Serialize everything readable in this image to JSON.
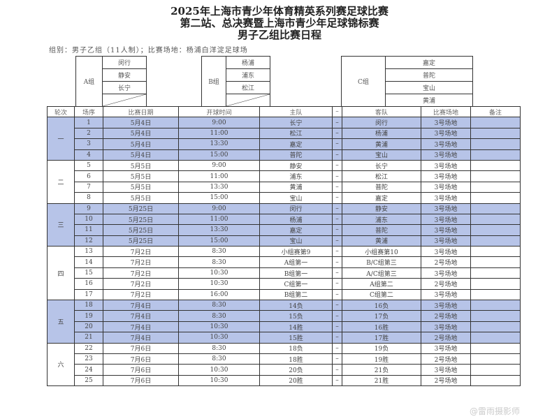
{
  "title": {
    "line1": "2025年上海市青少年体育精英系列赛足球比赛",
    "line2": "第二站、总决赛暨上海市青少年足球锦标赛",
    "line3": "男子乙组比赛日程"
  },
  "info": "组别：男子乙组（11人制）；比赛场地：杨浦白洋淀足球场",
  "groups": [
    {
      "label": "A组",
      "teams": [
        "闵行",
        "静安",
        "长宁",
        ""
      ]
    },
    {
      "label": "B组",
      "teams": [
        "杨浦",
        "浦东",
        "松江",
        ""
      ]
    },
    {
      "label": "C组",
      "teams": [
        "嘉定",
        "普陀",
        "宝山",
        "黄浦"
      ]
    }
  ],
  "headers": [
    "轮次",
    "场序",
    "比赛日期",
    "开球时间",
    "主队",
    "–",
    "客队",
    "比赛场地",
    "备注"
  ],
  "highlight_color": "#b7c4e8",
  "rounds": [
    {
      "name": "一",
      "highlight": true,
      "matches": [
        [
          "1",
          "5月4日",
          "9:00",
          "长宁",
          "闵行",
          "3号场地"
        ],
        [
          "2",
          "5月4日",
          "11:00",
          "松江",
          "杨浦",
          "3号场地"
        ],
        [
          "3",
          "5月4日",
          "13:30",
          "嘉定",
          "黄浦",
          "3号场地"
        ],
        [
          "4",
          "5月4日",
          "15:00",
          "普陀",
          "宝山",
          "3号场地"
        ]
      ]
    },
    {
      "name": "二",
      "highlight": false,
      "matches": [
        [
          "5",
          "5月5日",
          "9:00",
          "静安",
          "长宁",
          "3号场地"
        ],
        [
          "6",
          "5月5日",
          "11:00",
          "浦东",
          "松江",
          "3号场地"
        ],
        [
          "7",
          "5月5日",
          "13:30",
          "黄浦",
          "普陀",
          "3号场地"
        ],
        [
          "8",
          "5月5日",
          "15:00",
          "宝山",
          "嘉定",
          "3号场地"
        ]
      ]
    },
    {
      "name": "三",
      "highlight": true,
      "matches": [
        [
          "9",
          "5月25日",
          "9:00",
          "闵行",
          "静安",
          "3号场地"
        ],
        [
          "10",
          "5月25日",
          "11:00",
          "杨浦",
          "浦东",
          "3号场地"
        ],
        [
          "11",
          "5月25日",
          "13:30",
          "嘉定",
          "普陀",
          "3号场地"
        ],
        [
          "12",
          "5月25日",
          "15:00",
          "宝山",
          "黄浦",
          "3号场地"
        ]
      ]
    },
    {
      "name": "四",
      "highlight": false,
      "matches": [
        [
          "13",
          "7月2日",
          "8:30",
          "小组赛第9",
          "小组赛第10",
          "3号场地"
        ],
        [
          "14",
          "7月2日",
          "8:30",
          "A组第一",
          "B/C组第三",
          "2号场地"
        ],
        [
          "15",
          "7月2日",
          "10:30",
          "B组第一",
          "A/C组第三",
          "3号场地"
        ],
        [
          "16",
          "7月2日",
          "10:30",
          "C组第一",
          "A组第二",
          "2号场地"
        ],
        [
          "17",
          "7月2日",
          "16:00",
          "B组第二",
          "C组第二",
          "3号场地"
        ]
      ]
    },
    {
      "name": "五",
      "highlight": true,
      "matches": [
        [
          "18",
          "7月4日",
          "8:30",
          "14负",
          "16负",
          "3号场地"
        ],
        [
          "19",
          "7月4日",
          "8:30",
          "15负",
          "17负",
          "2号场地"
        ],
        [
          "20",
          "7月4日",
          "10:30",
          "14胜",
          "16胜",
          "3号场地"
        ],
        [
          "21",
          "7月4日",
          "10:30",
          "15胜",
          "17胜",
          "2号场地"
        ]
      ]
    },
    {
      "name": "六",
      "highlight": false,
      "matches": [
        [
          "22",
          "7月6日",
          "8:30",
          "18负",
          "19负",
          "3号场地"
        ],
        [
          "23",
          "7月6日",
          "8:30",
          "18胜",
          "19胜",
          "2号场地"
        ],
        [
          "24",
          "7月6日",
          "10:30",
          "20负",
          "21负",
          "3号场地"
        ],
        [
          "25",
          "7月6日",
          "10:30",
          "20胜",
          "21胜",
          "2号场地"
        ]
      ]
    }
  ],
  "watermark": "@雷雨摄影师"
}
